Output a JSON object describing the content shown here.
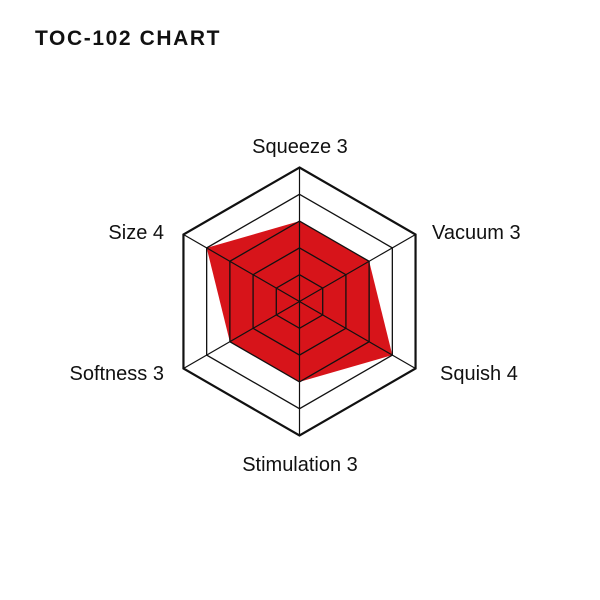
{
  "chart_data": {
    "type": "radar",
    "title": "TOC-102 CHART",
    "axes": [
      "Squeeze",
      "Vacuum",
      "Squish",
      "Stimulation",
      "Softness",
      "Size"
    ],
    "labels": [
      "Squeeze 3",
      "Vacuum 3",
      "Squish 4",
      "Stimulation 3",
      "Softness 3",
      "Size 4"
    ],
    "values": [
      3,
      3,
      4,
      3,
      3,
      4
    ],
    "range": [
      0,
      5
    ],
    "rings": 5,
    "fill_color": "#d7141a",
    "grid_color": "#111111"
  }
}
